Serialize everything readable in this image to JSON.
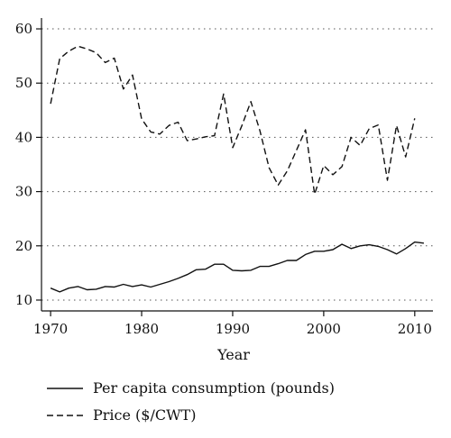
{
  "chart_data": {
    "type": "line",
    "title": "",
    "xlabel": "Year",
    "ylabel": "",
    "xlim": [
      1969,
      2012
    ],
    "ylim": [
      8,
      62
    ],
    "xticks": [
      1970,
      1980,
      1990,
      2000,
      2010
    ],
    "yticks": [
      10,
      20,
      30,
      40,
      50,
      60
    ],
    "grid": "horizontal dotted",
    "legend_position": "bottom",
    "series": [
      {
        "name": "Per capita consumption (pounds)",
        "style": "solid",
        "color": "#111111",
        "x": [
          1970,
          1971,
          1972,
          1973,
          1974,
          1975,
          1976,
          1977,
          1978,
          1979,
          1980,
          1981,
          1982,
          1983,
          1984,
          1985,
          1986,
          1987,
          1988,
          1989,
          1990,
          1991,
          1992,
          1993,
          1994,
          1995,
          1996,
          1997,
          1998,
          1999,
          2000,
          2001,
          2002,
          2003,
          2004,
          2005,
          2006,
          2007,
          2008,
          2009,
          2010,
          2011
        ],
        "y": [
          12.2,
          11.5,
          12.2,
          12.5,
          11.9,
          12.0,
          12.5,
          12.4,
          12.9,
          12.5,
          12.8,
          12.4,
          12.9,
          13.4,
          14.0,
          14.7,
          15.6,
          15.7,
          16.6,
          16.6,
          15.5,
          15.4,
          15.5,
          16.2,
          16.2,
          16.7,
          17.3,
          17.3,
          18.4,
          19.0,
          19.0,
          19.3,
          20.3,
          19.5,
          20.0,
          20.2,
          19.9,
          19.3,
          18.5,
          19.5,
          20.7,
          20.5
        ]
      },
      {
        "name": "Price ($/CWT)",
        "style": "dashed",
        "color": "#111111",
        "x": [
          1970,
          1971,
          1972,
          1973,
          1974,
          1975,
          1976,
          1977,
          1978,
          1979,
          1980,
          1981,
          1982,
          1983,
          1984,
          1985,
          1986,
          1987,
          1988,
          1989,
          1990,
          1991,
          1992,
          1993,
          1994,
          1995,
          1996,
          1997,
          1998,
          1999,
          2000,
          2001,
          2002,
          2003,
          2004,
          2005,
          2006,
          2007,
          2008,
          2009,
          2010
        ],
        "y": [
          46.2,
          54.5,
          55.9,
          56.8,
          56.3,
          55.6,
          53.8,
          54.6,
          48.9,
          51.5,
          43.4,
          41.0,
          40.6,
          42.2,
          42.8,
          39.4,
          39.7,
          40.1,
          40.3,
          48.0,
          38.1,
          42.1,
          46.6,
          41.2,
          34.4,
          31.2,
          33.8,
          37.6,
          41.4,
          29.5,
          34.8,
          33.1,
          34.6,
          40.0,
          38.5,
          41.6,
          42.3,
          32.1,
          42.2,
          36.4,
          43.5
        ]
      }
    ]
  }
}
